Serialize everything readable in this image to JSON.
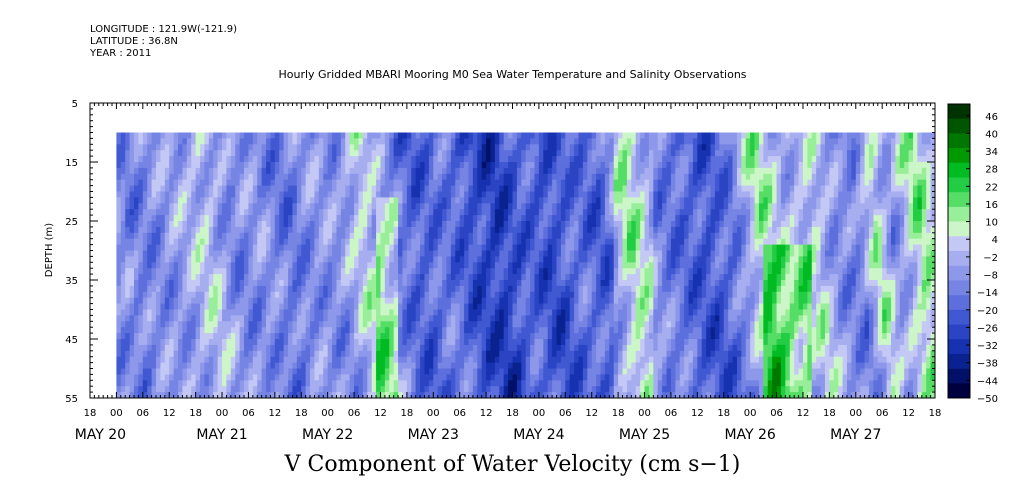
{
  "header": {
    "longitude": "LONGITUDE : 121.9W(-121.9)",
    "latitude": "LATITUDE : 36.8N",
    "year": "YEAR : 2011"
  },
  "chart_data": {
    "type": "heatmap",
    "title": "Hourly Gridded MBARI Mooring M0 Sea Water Temperature and Salinity Observations",
    "xlabel": "V Component of Water Velocity (cm s−1)",
    "ylabel": "DEPTH (m)",
    "ylim": [
      55,
      5
    ],
    "yticks": [
      "5",
      "15",
      "25",
      "35",
      "45",
      "55"
    ],
    "x_hour_ticks": [
      "18",
      "00",
      "06",
      "12",
      "18",
      "00",
      "06",
      "12",
      "18",
      "00",
      "06",
      "12",
      "18",
      "00",
      "06",
      "12",
      "18",
      "00",
      "06",
      "12",
      "18",
      "00",
      "06",
      "12",
      "18",
      "00",
      "06",
      "12",
      "18",
      "00",
      "06",
      "12",
      "18"
    ],
    "x_day_labels": [
      "MAY 20",
      "MAY 21",
      "MAY 22",
      "MAY 23",
      "MAY 24",
      "MAY 25",
      "MAY 26",
      "MAY 27"
    ],
    "xlim_hours": [
      -6,
      186
    ],
    "data_hours": [
      0,
      186
    ],
    "depth_range": [
      10,
      55
    ],
    "colorbar": {
      "labels": [
        "46",
        "40",
        "34",
        "28",
        "22",
        "16",
        "10",
        "4",
        "−2",
        "−8",
        "−14",
        "−20",
        "−26",
        "−32",
        "−38",
        "−44",
        "−50"
      ],
      "min": -50,
      "max": 50,
      "step": 6,
      "colors": [
        "#003300",
        "#005500",
        "#007700",
        "#009900",
        "#00bb22",
        "#22cc44",
        "#55dd66",
        "#99ee99",
        "#ccf5c8",
        "#c4c8f4",
        "#a6aef0",
        "#8e98ea",
        "#7684e4",
        "#5c6fdc",
        "#4058d2",
        "#2a44c4",
        "#1632b0",
        "#0a2290",
        "#021068",
        "#000040"
      ]
    },
    "values_description": "V-velocity field with alternating northward (green, ~+4 to +20) and southward (blue, ~-10 to -35) bands across depth 10-55 m over May 20-27, 2011"
  }
}
